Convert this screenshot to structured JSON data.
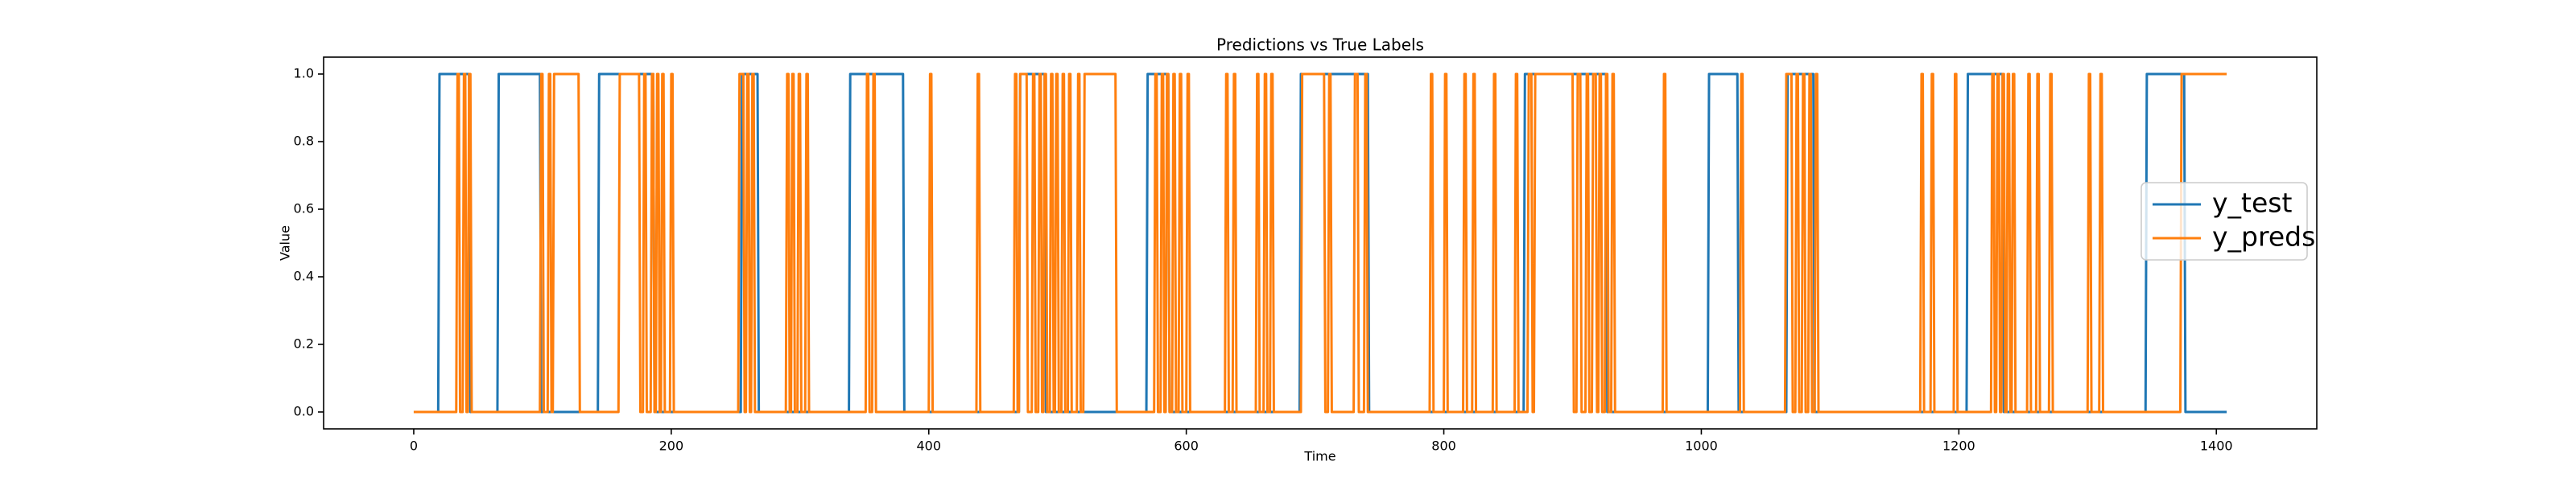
{
  "chart_data": {
    "type": "line",
    "title": "Predictions vs True Labels",
    "x_label": "Time",
    "y_label": "Value",
    "xlim": [
      -70,
      1478
    ],
    "ylim": [
      -0.05,
      1.05
    ],
    "xticks": [
      0,
      200,
      400,
      600,
      800,
      1000,
      1200,
      1400
    ],
    "yticks": [
      {
        "value": 0,
        "label": "0.0"
      },
      {
        "value": 0.2,
        "label": "0.2"
      },
      {
        "value": 0.4,
        "label": "0.4"
      },
      {
        "value": 0.6,
        "label": "0.6"
      },
      {
        "value": 0.8,
        "label": "0.8"
      },
      {
        "value": 1,
        "label": "1.0"
      }
    ],
    "legend": "center right",
    "series": [
      {
        "name": "y_test",
        "color": "#1f77b4",
        "x": [
          0,
          19,
          20,
          43,
          44,
          65,
          66,
          98,
          99,
          143,
          144,
          186,
          187,
          254,
          255,
          267,
          268,
          338,
          339,
          380,
          381,
          470,
          471,
          490,
          491,
          569,
          570,
          586,
          587,
          688,
          689,
          741,
          742,
          862,
          863,
          926,
          927,
          1005,
          1006,
          1028,
          1029,
          1066,
          1067,
          1087,
          1088,
          1206,
          1207,
          1234,
          1235,
          1345,
          1346,
          1375,
          1376,
          1408
        ],
        "values": [
          0,
          0,
          1,
          1,
          0,
          0,
          1,
          1,
          0,
          0,
          1,
          1,
          0,
          0,
          1,
          1,
          0,
          0,
          1,
          1,
          0,
          0,
          1,
          1,
          0,
          0,
          1,
          1,
          0,
          0,
          1,
          1,
          0,
          0,
          1,
          1,
          0,
          0,
          1,
          1,
          0,
          0,
          1,
          1,
          0,
          0,
          1,
          1,
          0,
          0,
          1,
          1,
          0,
          0
        ]
      },
      {
        "name": "y_preds",
        "color": "#ff7f0e",
        "x": [
          0,
          33,
          34,
          35,
          36,
          38,
          39,
          40,
          41,
          42,
          43,
          44,
          45,
          98,
          99,
          100,
          101,
          104,
          105,
          106,
          107,
          108,
          109,
          128,
          129,
          159,
          160,
          175,
          176,
          178,
          179,
          180,
          181,
          184,
          185,
          186,
          187,
          188,
          189,
          190,
          191,
          192,
          193,
          194,
          195,
          199,
          200,
          201,
          202,
          252,
          253,
          256,
          257,
          258,
          259,
          260,
          261,
          262,
          263,
          264,
          265,
          289,
          290,
          291,
          292,
          293,
          294,
          295,
          296,
          298,
          299,
          300,
          301,
          304,
          305,
          306,
          307,
          351,
          352,
          353,
          354,
          356,
          357,
          358,
          359,
          400,
          401,
          402,
          403,
          437,
          438,
          439,
          440,
          466,
          467,
          468,
          469,
          470,
          471,
          476,
          477,
          480,
          481,
          482,
          483,
          485,
          486,
          487,
          488,
          489,
          490,
          491,
          492,
          494,
          495,
          496,
          497,
          498,
          499,
          500,
          501,
          503,
          504,
          505,
          506,
          508,
          509,
          510,
          511,
          515,
          516,
          517,
          518,
          520,
          521,
          545,
          546,
          575,
          576,
          577,
          578,
          580,
          581,
          582,
          583,
          584,
          585,
          586,
          587,
          589,
          590,
          591,
          592,
          594,
          595,
          596,
          597,
          600,
          601,
          602,
          603,
          630,
          631,
          632,
          633,
          636,
          637,
          638,
          639,
          654,
          655,
          656,
          657,
          660,
          661,
          662,
          663,
          665,
          666,
          667,
          668,
          689,
          690,
          707,
          708,
          710,
          711,
          712,
          713,
          730,
          731,
          733,
          734,
          738,
          739,
          740,
          741,
          789,
          790,
          791,
          792,
          800,
          801,
          802,
          803,
          815,
          816,
          817,
          818,
          822,
          823,
          824,
          825,
          838,
          839,
          840,
          841,
          855,
          856,
          857,
          858,
          865,
          866,
          868,
          869,
          870,
          871,
          900,
          901,
          903,
          904,
          906,
          907,
          910,
          911,
          912,
          913,
          915,
          916,
          918,
          919,
          920,
          921,
          922,
          923,
          925,
          926,
          927,
          928,
          930,
          931,
          932,
          933,
          970,
          971,
          972,
          973,
          1030,
          1031,
          1032,
          1033,
          1065,
          1066,
          1070,
          1071,
          1073,
          1074,
          1075,
          1076,
          1078,
          1079,
          1080,
          1081,
          1083,
          1084,
          1085,
          1086,
          1088,
          1089,
          1090,
          1091,
          1170,
          1171,
          1172,
          1173,
          1178,
          1179,
          1180,
          1181,
          1196,
          1197,
          1198,
          1199,
          1225,
          1226,
          1227,
          1228,
          1229,
          1230,
          1231,
          1232,
          1233,
          1234,
          1235,
          1236,
          1237,
          1238,
          1239,
          1240,
          1241,
          1242,
          1243,
          1244,
          1253,
          1254,
          1255,
          1256,
          1260,
          1261,
          1262,
          1263,
          1270,
          1271,
          1272,
          1273,
          1300,
          1301,
          1302,
          1303,
          1309,
          1310,
          1311,
          1312,
          1372,
          1373,
          1408
        ],
        "values": [
          0,
          0,
          1,
          1,
          0,
          0,
          1,
          1,
          0,
          0,
          1,
          1,
          0,
          0,
          1,
          1,
          0,
          0,
          1,
          1,
          0,
          0,
          1,
          1,
          0,
          0,
          1,
          1,
          0,
          0,
          1,
          1,
          0,
          0,
          1,
          1,
          0,
          0,
          1,
          1,
          0,
          0,
          1,
          1,
          0,
          0,
          1,
          1,
          0,
          0,
          1,
          1,
          0,
          0,
          1,
          1,
          0,
          0,
          1,
          1,
          0,
          0,
          1,
          1,
          0,
          0,
          1,
          1,
          0,
          0,
          1,
          1,
          0,
          0,
          1,
          1,
          0,
          0,
          1,
          1,
          0,
          0,
          1,
          1,
          0,
          0,
          1,
          1,
          0,
          0,
          1,
          1,
          0,
          0,
          1,
          1,
          0,
          0,
          1,
          1,
          0,
          0,
          1,
          1,
          0,
          0,
          1,
          1,
          0,
          0,
          1,
          1,
          0,
          0,
          1,
          1,
          0,
          0,
          1,
          1,
          0,
          0,
          1,
          1,
          0,
          0,
          1,
          1,
          0,
          0,
          1,
          1,
          0,
          0,
          1,
          1,
          0,
          0,
          1,
          1,
          0,
          0,
          1,
          1,
          0,
          0,
          1,
          1,
          0,
          0,
          1,
          1,
          0,
          0,
          1,
          1,
          0,
          0,
          1,
          1,
          0,
          0,
          1,
          1,
          0,
          0,
          1,
          1,
          0,
          0,
          1,
          1,
          0,
          0,
          1,
          1,
          0,
          0,
          1,
          1,
          0,
          0,
          1,
          1,
          0,
          0,
          1,
          1,
          0,
          0,
          1,
          1,
          0,
          0,
          1,
          1,
          0,
          0,
          1,
          1,
          0,
          0,
          1,
          1,
          0,
          0,
          1,
          1,
          0,
          0,
          1,
          1,
          0,
          0,
          1,
          1,
          0,
          0,
          1,
          1,
          0,
          0,
          1,
          1,
          0,
          0,
          1,
          1,
          0,
          0,
          1,
          1,
          0,
          0,
          1,
          1,
          0,
          0,
          1,
          1,
          0,
          0,
          1,
          1,
          0,
          0,
          1,
          1,
          0,
          0,
          1,
          1,
          0,
          0,
          1,
          1,
          0,
          0,
          1,
          1,
          0,
          0,
          1,
          1,
          0,
          0,
          1,
          1,
          0,
          0,
          1,
          1,
          0,
          0,
          1,
          1,
          0,
          0,
          1,
          1,
          0,
          0,
          1,
          1,
          0,
          0,
          1,
          1,
          0,
          0,
          1,
          1,
          0,
          0,
          1,
          1,
          0,
          0,
          1,
          1,
          0,
          0,
          1,
          1,
          0,
          0,
          1,
          1,
          0,
          0,
          1,
          1,
          0,
          0,
          1,
          1,
          0,
          0,
          1,
          1,
          0,
          0,
          1,
          1,
          0,
          0,
          1,
          1,
          0,
          0,
          1,
          1,
          0,
          0,
          1,
          1
        ]
      }
    ]
  }
}
